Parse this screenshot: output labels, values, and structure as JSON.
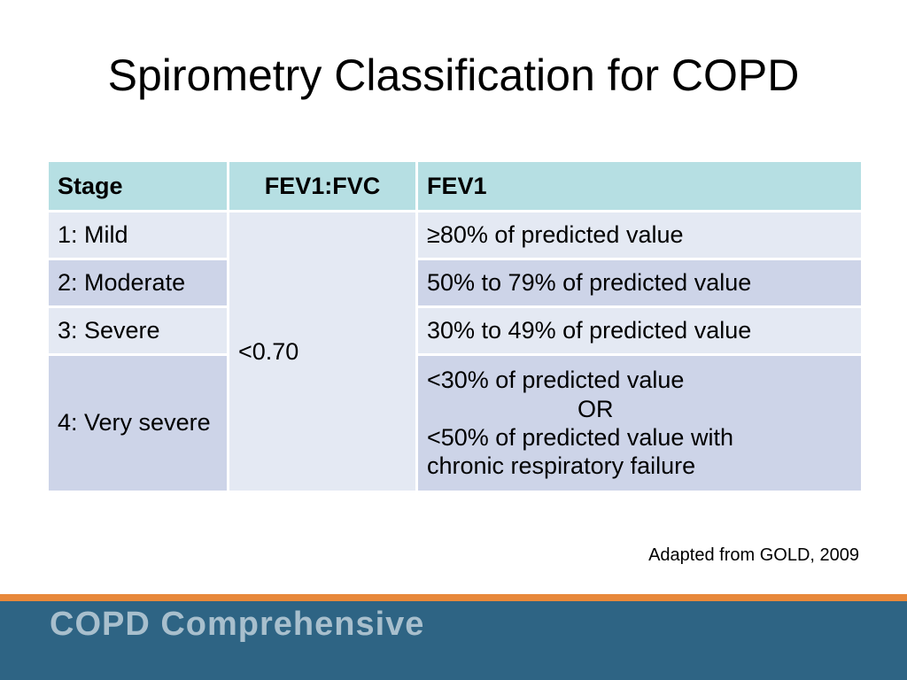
{
  "title": "Spirometry Classification for COPD",
  "table": {
    "headers": [
      "Stage",
      "FEV1:FVC",
      "FEV1"
    ],
    "ratio_value": "<0.70",
    "rows": [
      {
        "stage": "1: Mild",
        "fev1": "≥80% of predicted value"
      },
      {
        "stage": "2: Moderate",
        "fev1": "50% to 79% of predicted value"
      },
      {
        "stage": "3: Severe",
        "fev1": "30% to 49% of predicted value"
      },
      {
        "stage": "4: Very severe",
        "fev1_lines": [
          "<30% of predicted value",
          "OR",
          "<50% of predicted value with",
          "chronic respiratory failure"
        ]
      }
    ]
  },
  "source": "Adapted from GOLD, 2009",
  "footer": {
    "brand": "COPD Comprehensive"
  },
  "colors": {
    "header_bg": "#b6dfe3",
    "row_light": "#e4e9f3",
    "row_dark": "#cdd4e8",
    "footer_orange": "#e8883a",
    "footer_blue": "#2e6484"
  }
}
